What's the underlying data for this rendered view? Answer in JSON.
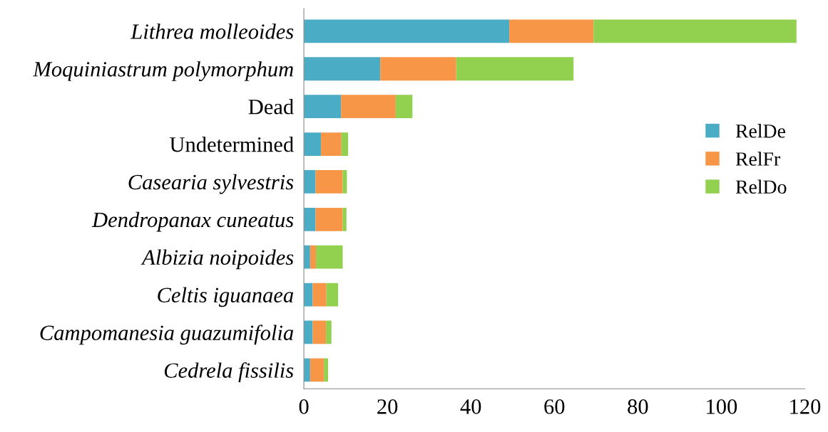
{
  "chart_data": {
    "type": "bar",
    "orientation": "horizontal",
    "stacked": true,
    "categories": [
      "Lithrea molleoides",
      "Moquiniastrum polymorphum",
      "Dead",
      "Undetermined",
      "Casearia sylvestris",
      "Dendropanax cuneatus",
      "Albizia noipoides",
      "Celtis iguanaea",
      "Campomanesia guazumifolia",
      "Cedrela fissilis"
    ],
    "series": [
      {
        "name": "RelDe",
        "color": "#4bacc6",
        "values": [
          49.2,
          18.3,
          8.9,
          4.1,
          2.8,
          2.8,
          1.5,
          2.1,
          2.1,
          1.5
        ]
      },
      {
        "name": "RelFr",
        "color": "#f79646",
        "values": [
          20.2,
          18.2,
          13.1,
          4.9,
          6.5,
          6.5,
          1.4,
          3.3,
          3.2,
          3.3
        ]
      },
      {
        "name": "RelDo",
        "color": "#92d050",
        "values": [
          48.6,
          28.1,
          4.0,
          1.6,
          1.0,
          0.9,
          6.4,
          2.8,
          1.3,
          1.0
        ]
      }
    ],
    "xlim": [
      0,
      120
    ],
    "xticks": [
      0,
      20,
      40,
      60,
      80,
      100,
      120
    ],
    "grid": false,
    "legend": "right"
  }
}
